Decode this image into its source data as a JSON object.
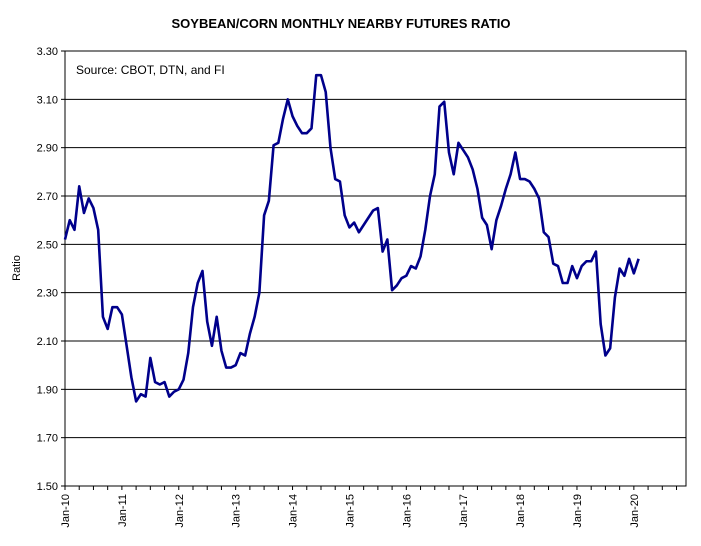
{
  "chart_data": {
    "type": "line",
    "title": "SOYBEAN/CORN MONTHLY NEARBY FUTURES RATIO",
    "annotation": "Source: CBOT, DTN, and FI",
    "ylabel": "Ratio",
    "xlabel": "",
    "ylim": [
      1.5,
      3.3
    ],
    "yticks": [
      "1.50",
      "1.70",
      "1.90",
      "2.10",
      "2.30",
      "2.50",
      "2.70",
      "2.90",
      "3.10",
      "3.30"
    ],
    "x_tick_labels": [
      "Jan-10",
      "Jan-11",
      "Jan-12",
      "Jan-13",
      "Jan-14",
      "Jan-15",
      "Jan-16",
      "Jan-17",
      "Jan-18",
      "Jan-19",
      "Jan-20"
    ],
    "x_tick_month_index": [
      0,
      12,
      24,
      36,
      48,
      60,
      72,
      84,
      96,
      108,
      120
    ],
    "xlim_months": [
      0,
      131
    ],
    "grid": "horizontal",
    "legend": "none",
    "series_color": "#00008B",
    "series": [
      {
        "values": [
          2.52,
          2.6,
          2.56,
          2.74,
          2.63,
          2.69,
          2.65,
          2.56,
          2.2,
          2.15,
          2.24,
          2.24,
          2.21,
          2.08,
          1.95,
          1.85,
          1.88,
          1.87,
          2.03,
          1.93,
          1.92,
          1.93,
          1.87,
          1.89,
          1.9,
          1.94,
          2.05,
          2.24,
          2.34,
          2.39,
          2.18,
          2.08,
          2.2,
          2.06,
          1.99,
          1.99,
          2.0,
          2.05,
          2.04,
          2.13,
          2.2,
          2.3,
          2.62,
          2.68,
          2.91,
          2.92,
          3.02,
          3.1,
          3.03,
          2.99,
          2.96,
          2.96,
          2.98,
          3.2,
          3.2,
          3.13,
          2.9,
          2.77,
          2.76,
          2.62,
          2.57,
          2.59,
          2.55,
          2.58,
          2.61,
          2.64,
          2.65,
          2.47,
          2.52,
          2.31,
          2.33,
          2.36,
          2.37,
          2.41,
          2.4,
          2.45,
          2.56,
          2.7,
          2.79,
          3.07,
          3.09,
          2.88,
          2.79,
          2.92,
          2.89,
          2.86,
          2.81,
          2.73,
          2.61,
          2.58,
          2.48,
          2.6,
          2.66,
          2.73,
          2.79,
          2.88,
          2.77,
          2.77,
          2.76,
          2.73,
          2.69,
          2.55,
          2.53,
          2.42,
          2.41,
          2.34,
          2.34,
          2.41,
          2.36,
          2.41,
          2.43,
          2.43,
          2.47,
          2.17,
          2.04,
          2.07,
          2.28,
          2.4,
          2.37,
          2.44,
          2.38,
          2.44
        ]
      }
    ]
  }
}
